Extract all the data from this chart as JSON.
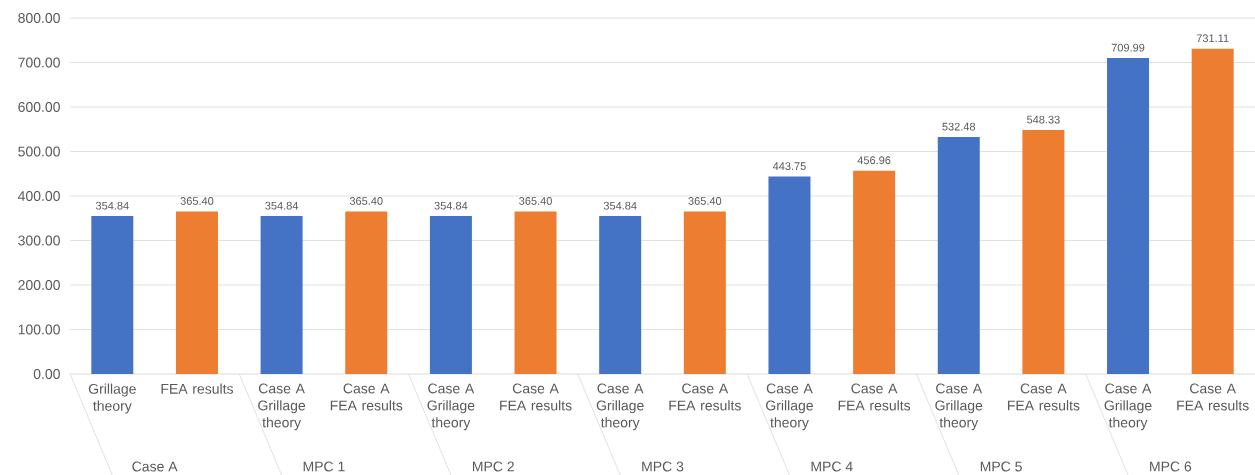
{
  "chart_data": {
    "type": "bar",
    "categories": [
      "Grillage theory",
      "FEA results",
      "Case A Grillage theory",
      "Case A FEA results",
      "Case A Grillage theory",
      "Case A FEA results",
      "Case A Grillage theory",
      "Case A FEA results",
      "Case A Grillage theory",
      "Case A FEA results",
      "Case A Grillage theory",
      "Case A FEA results",
      "Case A Grillage theory",
      "Case A FEA results"
    ],
    "values": [
      354.84,
      365.4,
      354.84,
      365.4,
      354.84,
      365.4,
      354.84,
      365.4,
      443.75,
      456.96,
      532.48,
      548.33,
      709.99,
      731.11
    ],
    "value_labels": [
      "354.84",
      "365.40",
      "354.84",
      "365.40",
      "354.84",
      "365.40",
      "354.84",
      "365.40",
      "443.75",
      "456.96",
      "532.48",
      "548.33",
      "709.99",
      "731.11"
    ],
    "colors": [
      "#4472c4",
      "#ed7d31",
      "#4472c4",
      "#ed7d31",
      "#4472c4",
      "#ed7d31",
      "#4472c4",
      "#ed7d31",
      "#4472c4",
      "#ed7d31",
      "#4472c4",
      "#ed7d31",
      "#4472c4",
      "#ed7d31"
    ],
    "annotations": [
      "Case A",
      "MPC  1",
      "MPC  2",
      "MPC  3",
      "MPC  4",
      "MPC  5",
      "MPC  6"
    ],
    "ylim": [
      0,
      800
    ],
    "yticks": [
      {
        "value": 0,
        "label": "0.00"
      },
      {
        "value": 100,
        "label": "100.00"
      },
      {
        "value": 200,
        "label": "200.00"
      },
      {
        "value": 300,
        "label": "300.00"
      },
      {
        "value": 400,
        "label": "400.00"
      },
      {
        "value": 500,
        "label": "500.00"
      },
      {
        "value": 600,
        "label": "600.00"
      },
      {
        "value": 700,
        "label": "700.00"
      },
      {
        "value": 800,
        "label": "800.00"
      }
    ],
    "grid": "y"
  }
}
